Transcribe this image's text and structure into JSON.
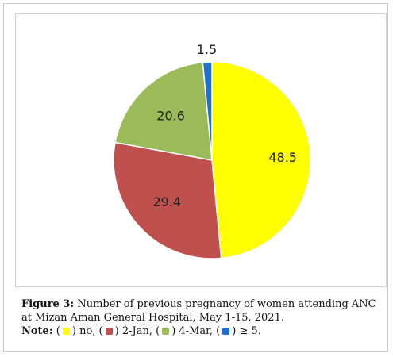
{
  "chart_data": {
    "type": "pie",
    "categories": [
      "no",
      "2-Jan",
      "4-Mar",
      "≥ 5."
    ],
    "values": [
      48.5,
      29.4,
      20.6,
      1.5
    ],
    "data_labels": [
      "48.5",
      "29.4",
      "20.6",
      "1.5"
    ],
    "colors": [
      "#ffff00",
      "#c0504d",
      "#9bbb59",
      "#1f6fd1"
    ],
    "title": "",
    "legend": "below caption"
  },
  "caption": {
    "figure_label": "Figure 3:",
    "text": " Number of previous pregnancy of women attending ANC at Mizan Aman General Hospital, May 1-15, 2021.",
    "note_label": "Note:",
    "legend_items": [
      {
        "label": "no",
        "color": "#ffff00"
      },
      {
        "label": "2-Jan",
        "color": "#c0504d"
      },
      {
        "label": "4-Mar",
        "color": "#9bbb59"
      },
      {
        "label": "≥ 5.",
        "color": "#1f6fd1"
      }
    ]
  }
}
